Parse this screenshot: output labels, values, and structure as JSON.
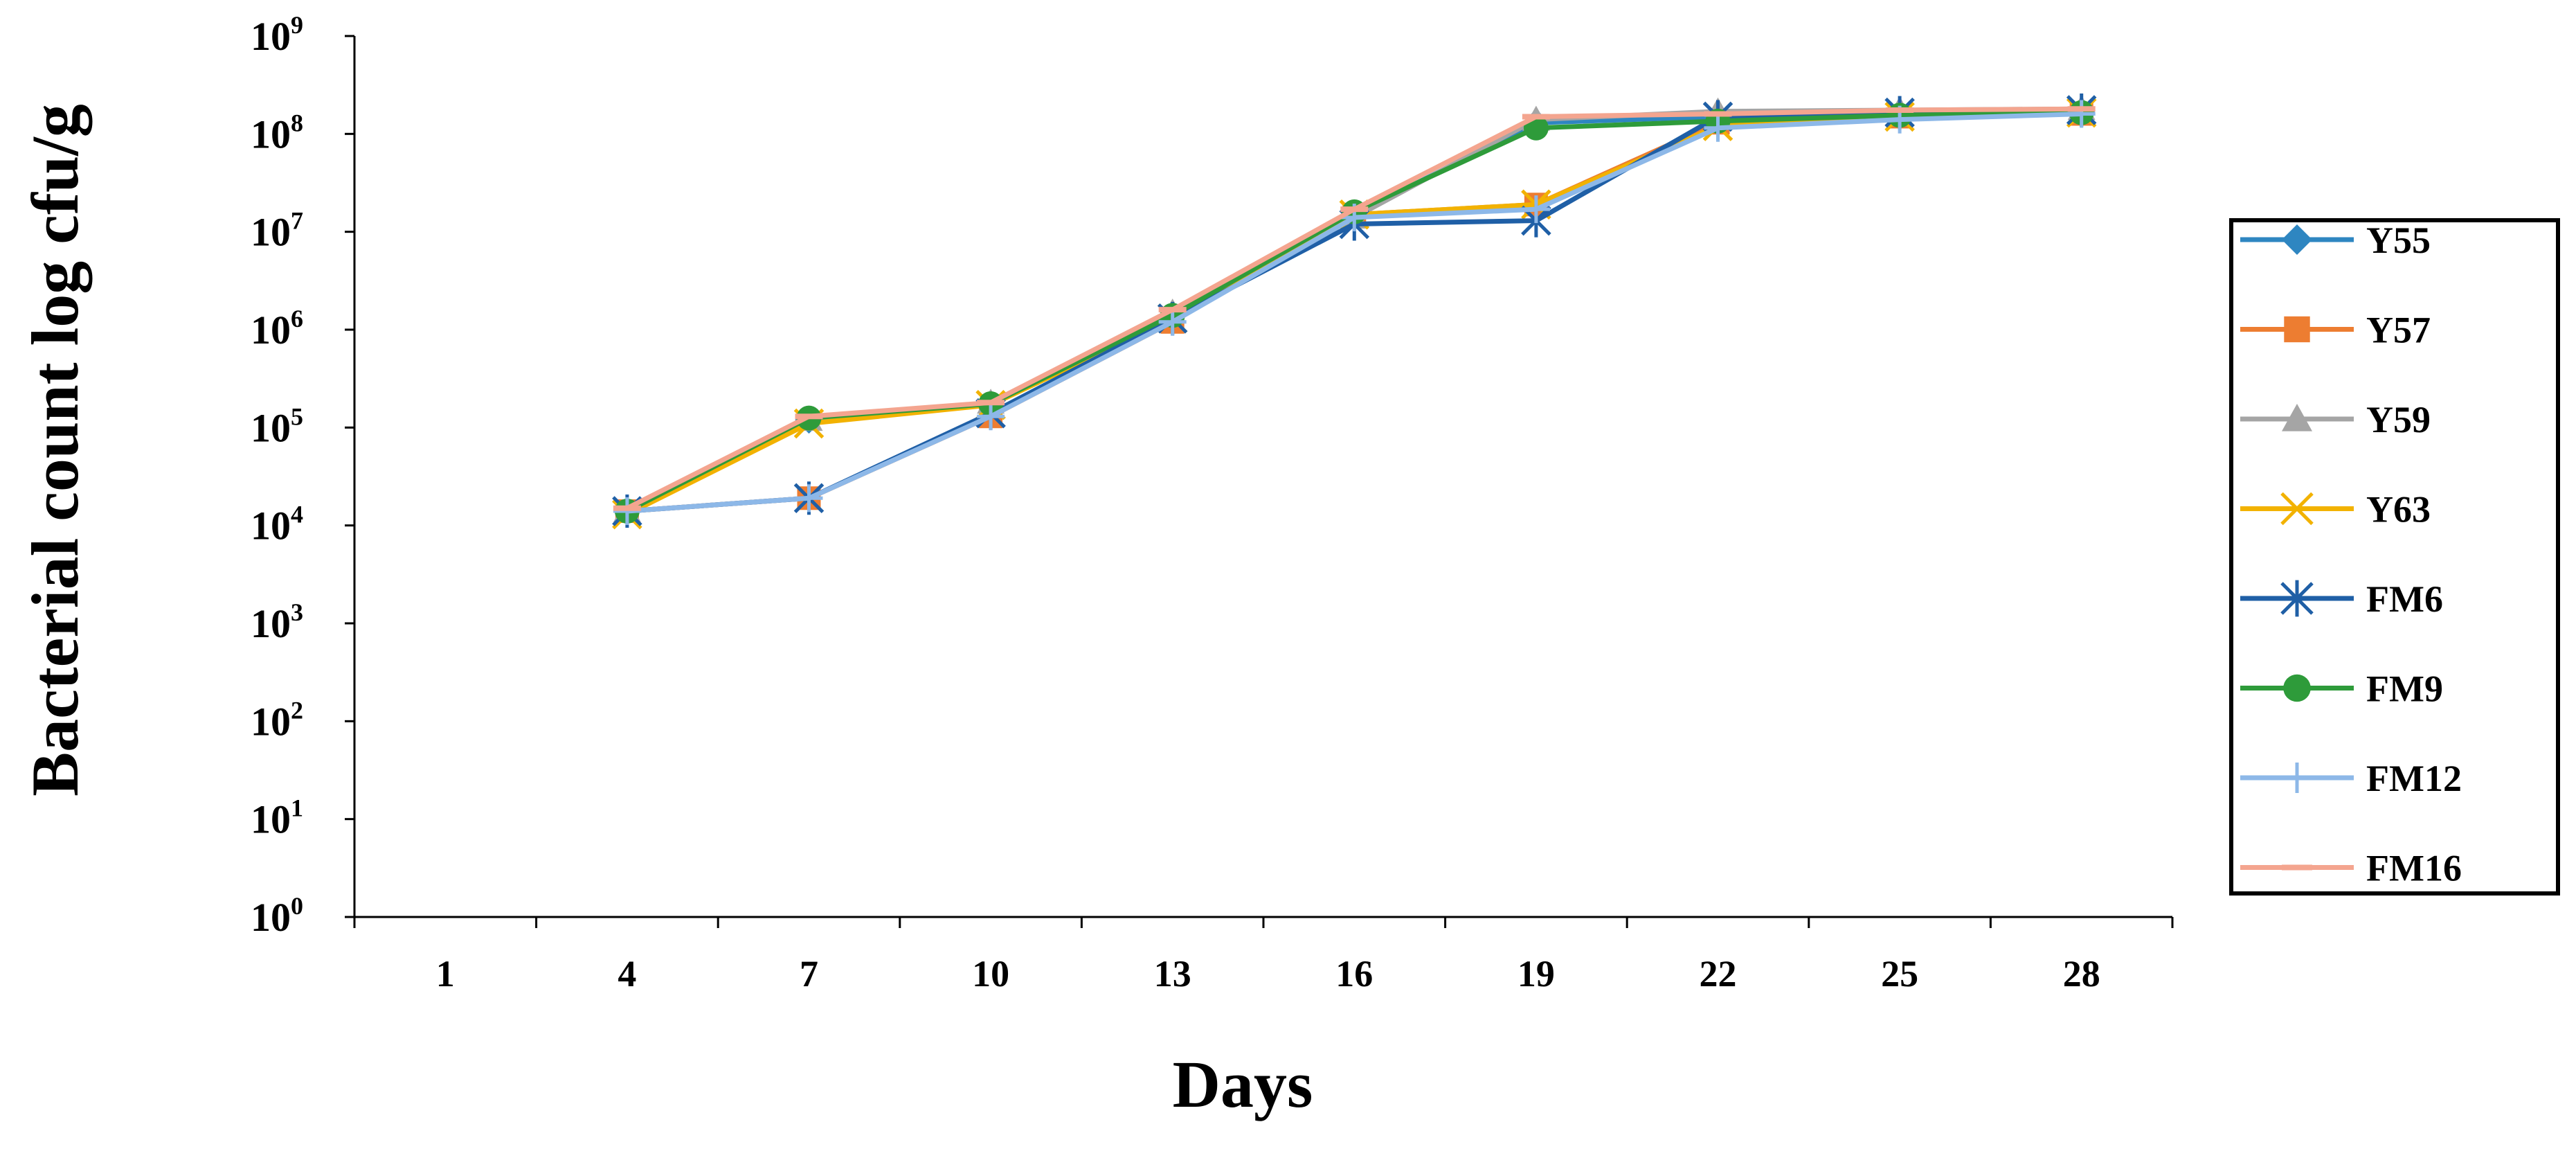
{
  "chart_data": {
    "type": "line",
    "xlabel": "Days",
    "ylabel": "Bacterial count log cfu/g",
    "y_scale": "log10",
    "ylim": [
      1,
      1000000000
    ],
    "y_ticks": [
      {
        "base": "10",
        "exp": "0",
        "value": 1
      },
      {
        "base": "10",
        "exp": "1",
        "value": 10
      },
      {
        "base": "10",
        "exp": "2",
        "value": 100
      },
      {
        "base": "10",
        "exp": "3",
        "value": 1000
      },
      {
        "base": "10",
        "exp": "4",
        "value": 10000
      },
      {
        "base": "10",
        "exp": "5",
        "value": 100000
      },
      {
        "base": "10",
        "exp": "6",
        "value": 1000000
      },
      {
        "base": "10",
        "exp": "7",
        "value": 10000000
      },
      {
        "base": "10",
        "exp": "8",
        "value": 100000000
      },
      {
        "base": "10",
        "exp": "9",
        "value": 1000000000
      }
    ],
    "categories": [
      "1",
      "4",
      "7",
      "10",
      "13",
      "16",
      "19",
      "22",
      "25",
      "28"
    ],
    "grid": false,
    "legend_position": "right",
    "series": [
      {
        "name": "Y55",
        "color": "#2E86C1",
        "marker": "diamond",
        "values": [
          null,
          14000,
          120000,
          170000,
          1400000,
          15000000,
          130000000,
          150000000,
          160000000,
          170000000
        ]
      },
      {
        "name": "Y57",
        "color": "#ED7D31",
        "marker": "square",
        "values": [
          null,
          14000,
          19000,
          130000,
          1200000,
          15000000,
          19000000,
          130000000,
          150000000,
          160000000
        ]
      },
      {
        "name": "Y59",
        "color": "#A5A5A5",
        "marker": "triangle",
        "values": [
          null,
          14000,
          120000,
          180000,
          1500000,
          14000000,
          140000000,
          170000000,
          175000000,
          180000000
        ]
      },
      {
        "name": "Y63",
        "color": "#F2B200",
        "marker": "x",
        "values": [
          null,
          13000,
          110000,
          170000,
          1300000,
          15000000,
          19000000,
          120000000,
          150000000,
          165000000
        ]
      },
      {
        "name": "FM6",
        "color": "#1F5FA6",
        "marker": "asterisk",
        "values": [
          null,
          14000,
          19000,
          140000,
          1300000,
          12000000,
          13000000,
          150000000,
          165000000,
          175000000
        ]
      },
      {
        "name": "FM9",
        "color": "#2E9B3A",
        "marker": "circle",
        "values": [
          null,
          14000,
          125000,
          175000,
          1400000,
          16000000,
          115000000,
          135000000,
          155000000,
          165000000
        ]
      },
      {
        "name": "FM12",
        "color": "#8DB8E8",
        "marker": "plus",
        "values": [
          null,
          14000,
          19000,
          130000,
          1200000,
          14000000,
          17000000,
          115000000,
          140000000,
          160000000
        ]
      },
      {
        "name": "FM16",
        "color": "#F4A58F",
        "marker": "dash",
        "values": [
          null,
          15000,
          130000,
          180000,
          1600000,
          17000000,
          150000000,
          160000000,
          175000000,
          180000000
        ]
      }
    ]
  }
}
